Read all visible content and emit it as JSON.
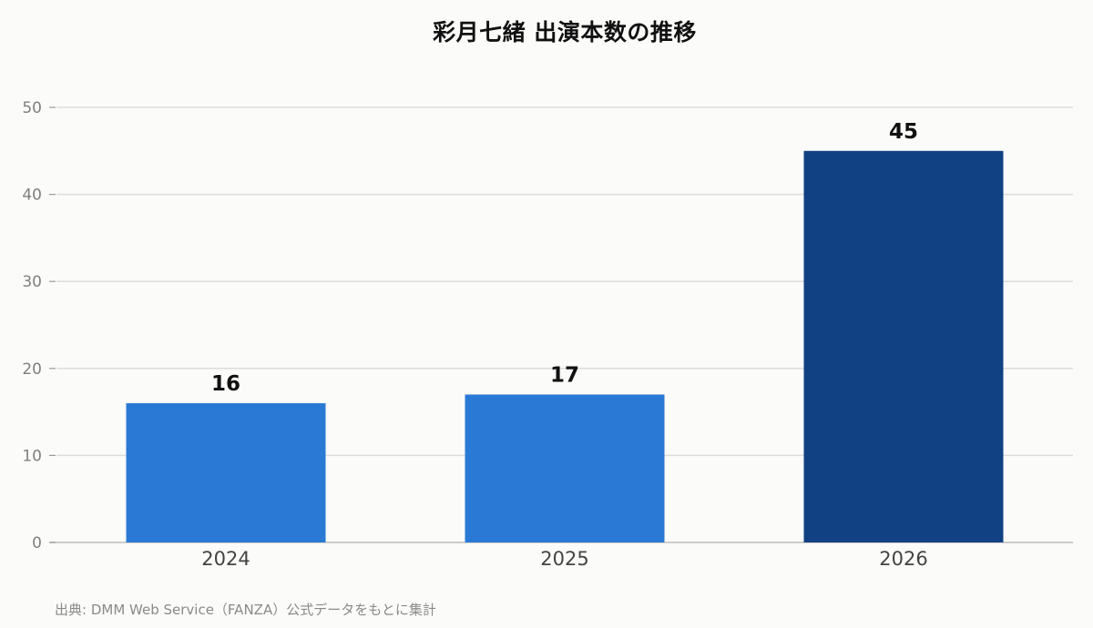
{
  "chart_data": {
    "type": "bar",
    "title": "彩月七緒 出演本数の推移",
    "categories": [
      "2024",
      "2025",
      "2026"
    ],
    "values": [
      16,
      17,
      45
    ],
    "bar_colors": [
      "#2a7ad5",
      "#2a7ad5",
      "#114183"
    ],
    "xlabel": "",
    "ylabel": "",
    "ylim": [
      0,
      50
    ],
    "yticks": [
      0,
      10,
      20,
      30,
      40,
      50
    ],
    "grid": true,
    "legend": "none"
  },
  "footer": {
    "source": "出典: DMM Web Service（FANZA）公式データをもとに集計"
  },
  "colors": {
    "background": "#fbfbf9",
    "gridline": "#dcdcdc",
    "axis": "#bdbdbd"
  }
}
